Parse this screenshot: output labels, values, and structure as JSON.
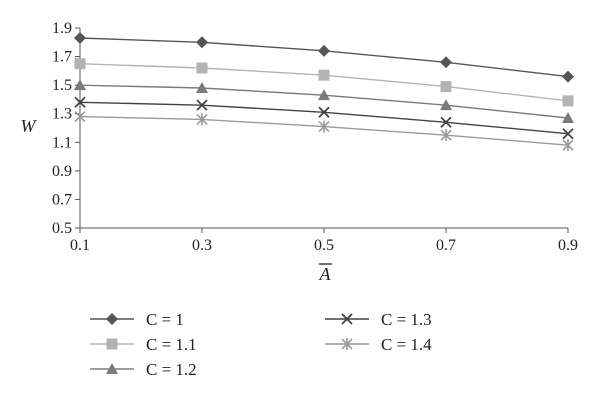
{
  "chart_data": {
    "type": "line",
    "xlabel": "A",
    "xlabel_overline": true,
    "ylabel": "W",
    "x": [
      0.1,
      0.3,
      0.5,
      0.7,
      0.9
    ],
    "x_tick_labels": [
      "0.1",
      "0.3",
      "0.5",
      "0.7",
      "0.9"
    ],
    "ylim": [
      0.5,
      1.9
    ],
    "y_ticks": [
      0.5,
      0.7,
      0.9,
      1.1,
      1.3,
      1.5,
      1.7,
      1.9
    ],
    "y_tick_labels": [
      "0.5",
      "0.7",
      "0.9",
      "1.1",
      "1.3",
      "1.5",
      "1.7",
      "1.9"
    ],
    "grid": false,
    "legend_position": "bottom",
    "series": [
      {
        "name": "C = 1",
        "values": [
          1.83,
          1.8,
          1.74,
          1.66,
          1.56
        ],
        "marker": "diamond",
        "color": "#555555"
      },
      {
        "name": "C = 1.1",
        "values": [
          1.65,
          1.62,
          1.57,
          1.49,
          1.39
        ],
        "marker": "square",
        "color": "#b3b3b3"
      },
      {
        "name": "C = 1.2",
        "values": [
          1.5,
          1.48,
          1.43,
          1.36,
          1.27
        ],
        "marker": "triangle",
        "color": "#7a7a7a"
      },
      {
        "name": "C = 1.3",
        "values": [
          1.38,
          1.36,
          1.31,
          1.24,
          1.16
        ],
        "marker": "x",
        "color": "#444444"
      },
      {
        "name": "C = 1.4",
        "values": [
          1.28,
          1.26,
          1.21,
          1.15,
          1.08
        ],
        "marker": "asterisk",
        "color": "#999999"
      }
    ]
  }
}
